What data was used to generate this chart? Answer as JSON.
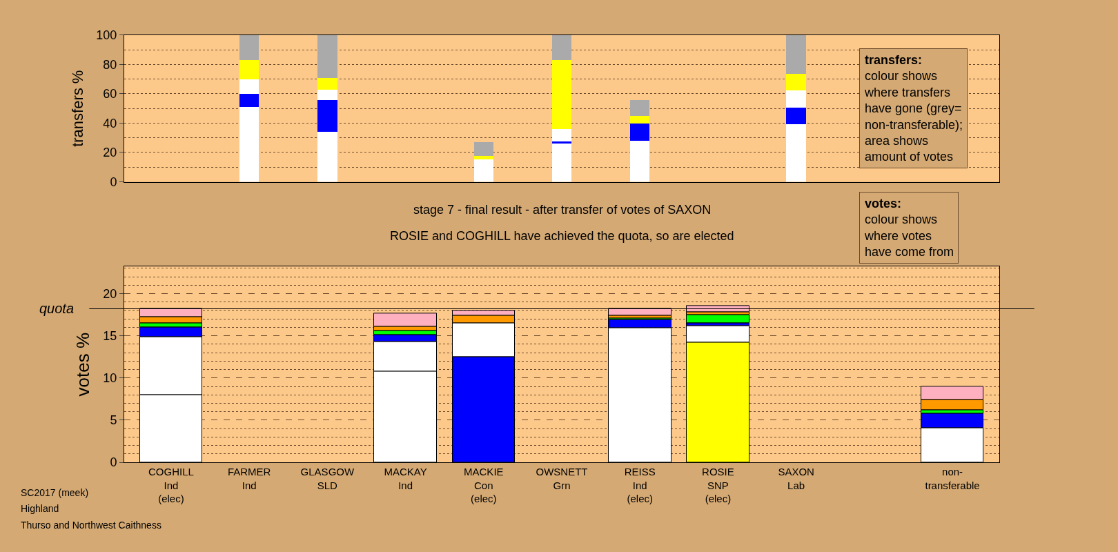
{
  "chart_data": [
    {
      "type": "bar",
      "stacked": true,
      "ylabel": "transfers %",
      "ylim": [
        0,
        100
      ],
      "yticks": [
        0,
        20,
        40,
        60,
        80,
        100
      ],
      "grid": "y",
      "tick_labels": "y",
      "categories": [
        null,
        null,
        null,
        null,
        null,
        null,
        null,
        null,
        null,
        null,
        null
      ],
      "series": [
        {
          "color": "#ffffff",
          "values": [
            null,
            51,
            34,
            null,
            15.5,
            26,
            28,
            null,
            39.5,
            null,
            null
          ]
        },
        {
          "color": "#0000ff",
          "values": [
            null,
            9,
            22,
            null,
            null,
            1.5,
            12,
            null,
            11,
            null,
            null
          ]
        },
        {
          "color": "#ffffff",
          "values": [
            null,
            10,
            7,
            null,
            null,
            8.5,
            null,
            null,
            12,
            null,
            null
          ]
        },
        {
          "color": "#ffff00",
          "values": [
            null,
            13,
            8,
            null,
            2,
            47,
            5,
            null,
            11,
            null,
            null
          ]
        },
        {
          "color": "#aaaaaa",
          "values": [
            null,
            17,
            29,
            null,
            9.5,
            17,
            11,
            null,
            26.5,
            null,
            null
          ]
        }
      ],
      "annotations": [
        "transfers:\ncolour shows\nwhere transfers\nhave gone (grey=\nnon-transferable);\narea shows\namount of votes"
      ]
    },
    {
      "type": "bar",
      "stacked": true,
      "title": "stage 7 - final result - after transfer of votes of SAXON",
      "subtitle": "ROSIE and COGHILL have achieved the quota, so are elected",
      "ylabel": "votes %",
      "ylim": [
        0,
        23.2
      ],
      "yticks": [
        0,
        5,
        10,
        15,
        20
      ],
      "grid": "y",
      "categories": [
        "COGHILL\nInd\n(elec)",
        "FARMER\nInd",
        "GLASGOW\nSLD",
        "MACKAY\nInd",
        "MACKIE\nCon\n(elec)",
        "OWSNETT\nGrn",
        "REISS\nInd\n(elec)",
        "ROSIE\nSNP\n(elec)",
        "SAXON\nLab",
        null,
        "non-\ntransferable"
      ],
      "series": [
        {
          "colors": [
            "#ffffff",
            "#ffffff",
            "#ffffff",
            "#ffffff",
            "#0000ff",
            "#ffffff",
            "#ffffff",
            "#ffff00",
            "#ffffff",
            "#ffffff",
            "#ffffff"
          ],
          "values": [
            8.0,
            null,
            null,
            10.8,
            12.5,
            null,
            15.9,
            14.2,
            null,
            null,
            4.1
          ]
        },
        {
          "color": "#ffffff",
          "values": [
            6.9,
            null,
            null,
            3.5,
            4.0,
            null,
            null,
            2.0,
            null,
            null,
            null
          ]
        },
        {
          "color": "#0000ff",
          "values": [
            1.1,
            null,
            null,
            0.8,
            null,
            null,
            1.0,
            0.3,
            null,
            null,
            1.7
          ]
        },
        {
          "color": "#00ff00",
          "values": [
            0.5,
            null,
            null,
            0.5,
            null,
            null,
            0.2,
            1.0,
            null,
            null,
            0.4
          ]
        },
        {
          "color": "#ff9900",
          "values": [
            0.7,
            null,
            null,
            0.5,
            0.9,
            null,
            0.3,
            0.3,
            null,
            null,
            1.2
          ]
        },
        {
          "color": "#ffb0c0",
          "values": [
            1.0,
            null,
            null,
            1.5,
            0.6,
            null,
            0.8,
            0.7,
            null,
            null,
            1.6
          ]
        }
      ],
      "ref_lines": [
        {
          "axis": "y",
          "value": 18.2,
          "label": "quota"
        }
      ],
      "annotations": [
        "votes:\ncolour shows\nwhere votes\nhave come from",
        "SC2017 (meek)",
        "Highland",
        "Thurso and Northwest Caithness"
      ]
    }
  ]
}
